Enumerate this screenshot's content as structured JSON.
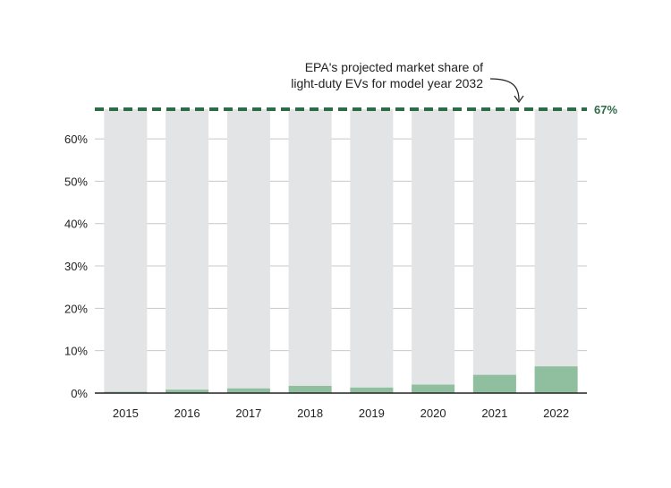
{
  "chart_data": {
    "type": "bar",
    "categories": [
      "2015",
      "2016",
      "2017",
      "2018",
      "2019",
      "2020",
      "2021",
      "2022"
    ],
    "values": [
      0.3,
      0.8,
      1.1,
      1.7,
      1.3,
      2.0,
      4.3,
      6.3
    ],
    "background_bar_value": 67,
    "ylim": [
      0,
      67
    ],
    "yticks": [
      0,
      10,
      20,
      30,
      40,
      50,
      60
    ],
    "ytick_labels": [
      "0%",
      "10%",
      "20%",
      "30%",
      "40%",
      "50%",
      "60%"
    ],
    "grid": true,
    "target": {
      "value": 67,
      "label": "67%"
    },
    "annotation": {
      "line1": "EPA's projected market share of",
      "line2": "light-duty EVs for model year 2032"
    },
    "colors": {
      "bar": "#8fbf9f",
      "background_bar": "#e3e4e6",
      "target_line": "#2e6b47",
      "grid": "#c8c8c8",
      "axis": "#222222"
    }
  }
}
